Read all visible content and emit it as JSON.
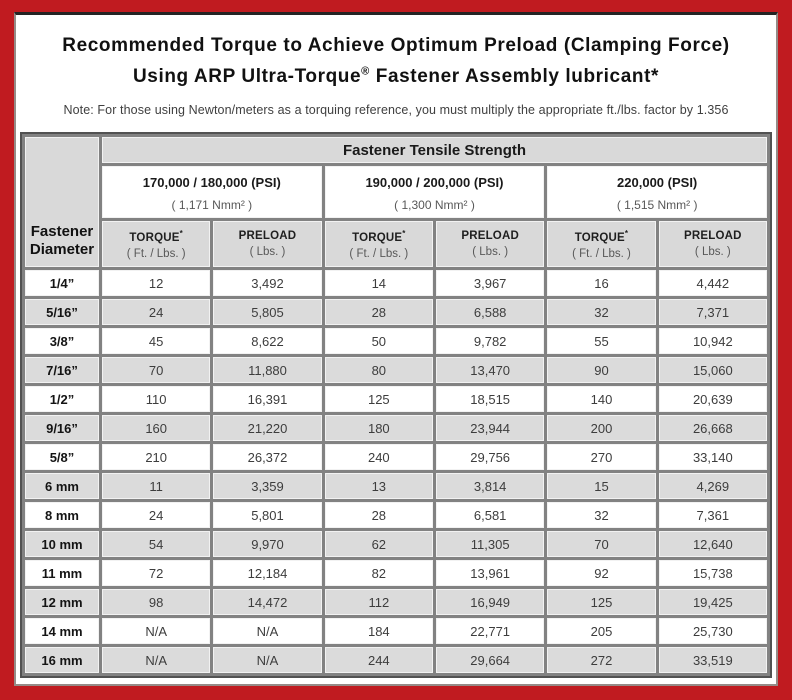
{
  "colors": {
    "border_red": "#c01b20",
    "cell_gray": "#d9d9d9",
    "grid_gray": "#828282"
  },
  "header": {
    "title_line1": "Recommended Torque to Achieve Optimum Preload (Clamping Force)",
    "title_line2_prefix": "Using ARP Ultra-Torque",
    "title_line2_mark": "®",
    "title_line2_suffix": " Fastener Assembly lubricant*",
    "note": "Note: For those using Newton/meters as a torquing reference, you must multiply the appropriate ft./lbs. factor by 1.356"
  },
  "table": {
    "corner": {
      "line1": "Fastener",
      "line2": "Diameter"
    },
    "tensile_strength_header": "Fastener Tensile Strength",
    "strength_groups": [
      {
        "psi": "170,000 / 180,000 (PSI)",
        "nmm": "( 1,171 Nmm² )"
      },
      {
        "psi": "190,000 / 200,000 (PSI)",
        "nmm": "( 1,300 Nmm² )"
      },
      {
        "psi": "220,000 (PSI)",
        "nmm": "( 1,515 Nmm² )"
      }
    ],
    "subheaders": {
      "torque_label": "TORQUE",
      "torque_mark": "*",
      "torque_unit": "( Ft. / Lbs. )",
      "preload_label": "PRELOAD",
      "preload_unit": "( Lbs. )"
    },
    "rows": [
      {
        "diameter": "1/4”",
        "values": [
          "12",
          "3,492",
          "14",
          "3,967",
          "16",
          "4,442"
        ]
      },
      {
        "diameter": "5/16”",
        "values": [
          "24",
          "5,805",
          "28",
          "6,588",
          "32",
          "7,371"
        ]
      },
      {
        "diameter": "3/8”",
        "values": [
          "45",
          "8,622",
          "50",
          "9,782",
          "55",
          "10,942"
        ]
      },
      {
        "diameter": "7/16”",
        "values": [
          "70",
          "11,880",
          "80",
          "13,470",
          "90",
          "15,060"
        ]
      },
      {
        "diameter": "1/2”",
        "values": [
          "110",
          "16,391",
          "125",
          "18,515",
          "140",
          "20,639"
        ]
      },
      {
        "diameter": "9/16”",
        "values": [
          "160",
          "21,220",
          "180",
          "23,944",
          "200",
          "26,668"
        ]
      },
      {
        "diameter": "5/8”",
        "values": [
          "210",
          "26,372",
          "240",
          "29,756",
          "270",
          "33,140"
        ]
      },
      {
        "diameter": "6 mm",
        "values": [
          "11",
          "3,359",
          "13",
          "3,814",
          "15",
          "4,269"
        ]
      },
      {
        "diameter": "8 mm",
        "values": [
          "24",
          "5,801",
          "28",
          "6,581",
          "32",
          "7,361"
        ]
      },
      {
        "diameter": "10 mm",
        "values": [
          "54",
          "9,970",
          "62",
          "11,305",
          "70",
          "12,640"
        ]
      },
      {
        "diameter": "11 mm",
        "values": [
          "72",
          "12,184",
          "82",
          "13,961",
          "92",
          "15,738"
        ]
      },
      {
        "diameter": "12 mm",
        "values": [
          "98",
          "14,472",
          "112",
          "16,949",
          "125",
          "19,425"
        ]
      },
      {
        "diameter": "14 mm",
        "values": [
          "N/A",
          "N/A",
          "184",
          "22,771",
          "205",
          "25,730"
        ]
      },
      {
        "diameter": "16 mm",
        "values": [
          "N/A",
          "N/A",
          "244",
          "29,664",
          "272",
          "33,519"
        ]
      }
    ]
  }
}
